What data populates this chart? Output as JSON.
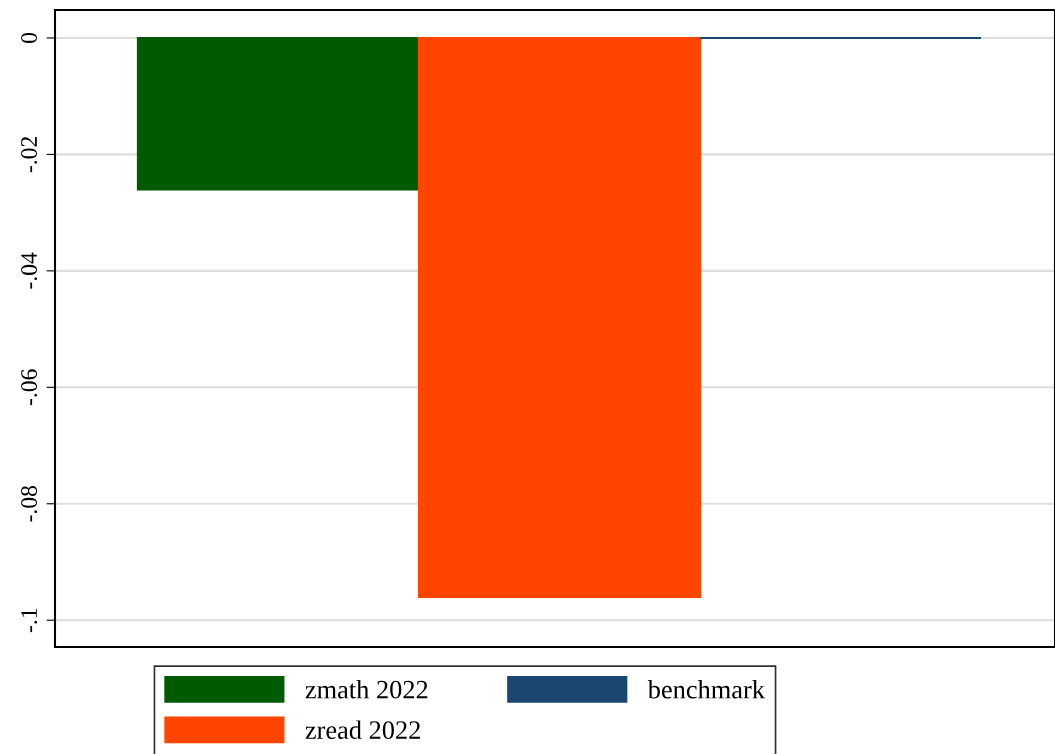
{
  "chart_data": {
    "type": "bar",
    "categories": [
      null,
      null,
      null
    ],
    "series": [
      {
        "name": "zmath 2022",
        "color": "#005a00",
        "values": [
          -0.026,
          null,
          null
        ]
      },
      {
        "name": "zread 2022",
        "color": "#ff4500",
        "values": [
          null,
          -0.096,
          null
        ]
      },
      {
        "name": "benchmark",
        "color": "#1a476f",
        "values": [
          null,
          null,
          0
        ]
      }
    ],
    "ylim": [
      -0.1046,
      0.0048
    ],
    "yticks": [
      {
        "value": -0.1,
        "label": "-.1"
      },
      {
        "value": -0.08,
        "label": "-.08"
      },
      {
        "value": -0.06,
        "label": "-.06"
      },
      {
        "value": -0.04,
        "label": "-.04"
      },
      {
        "value": -0.02,
        "label": "-.02"
      },
      0
    ],
    "grid": "y",
    "legend": "bottom"
  }
}
